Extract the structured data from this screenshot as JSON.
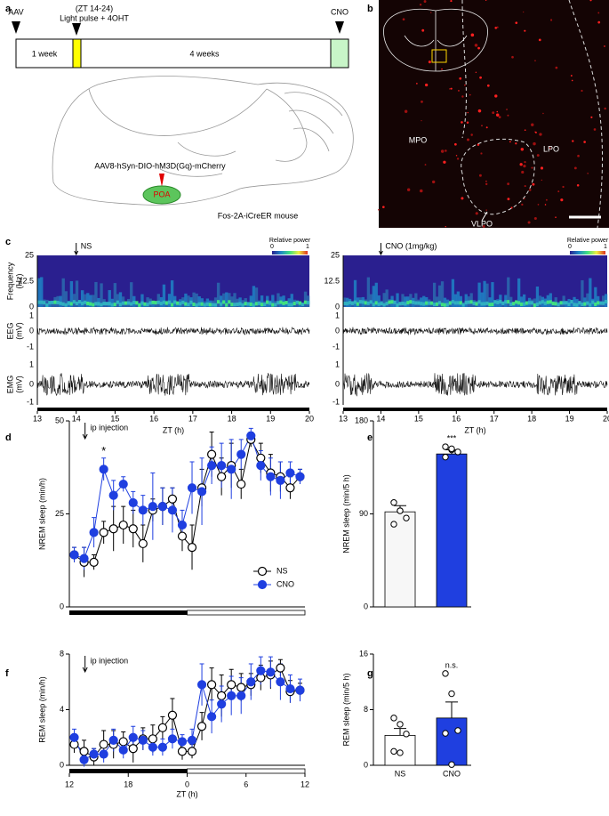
{
  "panels": {
    "a": {
      "label": "a",
      "zt": "(ZT 14-24)",
      "pulse": "Light pulse + 4OHT",
      "aav": "AAV",
      "cno": "CNO",
      "week1": "1 week",
      "week4": "4 weeks",
      "virus": "AAV8-hSyn-DIO-hM3D(Gq)-mCherry",
      "region": "POA",
      "mouse": "Fos-2A-iCreER mouse"
    },
    "b": {
      "label": "b",
      "mpo": "MPO",
      "lpo": "LPO",
      "vlpo": "VLPO"
    },
    "c": {
      "label": "c",
      "left_marker": "NS",
      "right_marker": "CNO (1mg/kg)",
      "power": "Relative power",
      "power_min": 0,
      "power_max": 1,
      "freq_label": [
        "Frequency",
        "(Hz)"
      ],
      "freq_ticks": [
        25,
        12.5,
        0
      ],
      "eeg_label": [
        "EEG",
        "(mV)"
      ],
      "emg_label": [
        "EMG",
        "(mV)"
      ],
      "mv_ticks": [
        1,
        0,
        -1
      ],
      "zt_ticks": [
        13,
        14,
        15,
        16,
        17,
        18,
        19,
        20
      ],
      "zt_label": "ZT (h)"
    }
  },
  "chart_data": [
    {
      "type": "line",
      "panel_label": "d",
      "ylabel": "NREM sleep (min/h)",
      "annotations": [
        "ip injection",
        "*"
      ],
      "x": [
        12.5,
        13.5,
        14.5,
        15.5,
        16.5,
        17.5,
        18.5,
        19.5,
        20.5,
        21.5,
        22.5,
        23.5,
        24.5,
        25.5,
        26.5,
        27.5,
        28.5,
        29.5,
        30.5,
        31.5,
        32.5,
        33.5,
        34.5,
        35.5
      ],
      "xlim": [
        12,
        36
      ],
      "ylim": [
        0,
        50
      ],
      "yticks": [
        0,
        25,
        50
      ],
      "legend": "lower right",
      "series": [
        {
          "name": "NS",
          "color": "#000000",
          "fill": "#ffffff",
          "values": [
            14,
            12,
            12,
            20,
            21,
            22,
            21,
            17,
            26,
            27,
            29,
            19,
            16,
            32,
            41,
            35,
            38,
            33,
            45,
            40,
            36,
            35,
            32,
            35
          ],
          "errors": [
            2,
            4,
            2,
            3,
            6,
            5,
            5,
            5,
            3,
            5,
            3,
            4,
            6,
            5,
            6,
            5,
            6,
            4,
            2,
            4,
            5,
            4,
            3,
            2
          ]
        },
        {
          "name": "CNO",
          "color": "#1f3fe0",
          "fill": "#1f3fe0",
          "values": [
            14,
            13,
            20,
            37,
            30,
            33,
            28,
            26,
            27,
            27,
            26,
            22,
            32,
            31,
            38,
            38,
            37,
            41,
            46,
            38,
            35,
            34,
            36,
            35
          ],
          "errors": [
            2,
            3,
            4,
            3,
            4,
            2,
            3,
            4,
            9,
            5,
            6,
            4,
            7,
            9,
            5,
            6,
            8,
            4,
            2,
            4,
            5,
            5,
            3,
            2
          ]
        }
      ]
    },
    {
      "type": "bar",
      "panel_label": "e",
      "ylabel": "NREM sleep (min/5 h)",
      "annotations": [
        "***"
      ],
      "values": [
        92,
        148
      ],
      "errors": [
        6,
        4
      ],
      "colors": [
        "#f7f7f7",
        "#1f3fe0"
      ],
      "points": [
        [
          101,
          93,
          86,
          80,
          93
        ],
        [
          155,
          152,
          150,
          145,
          153
        ]
      ],
      "ylim": [
        0,
        180
      ],
      "yticks": [
        0,
        90,
        180
      ]
    },
    {
      "type": "line",
      "panel_label": "f",
      "ylabel": "REM sleep (min/h)",
      "xlabel": "ZT (h)",
      "annotations": [
        "ip injection"
      ],
      "x": [
        12.5,
        13.5,
        14.5,
        15.5,
        16.5,
        17.5,
        18.5,
        19.5,
        20.5,
        21.5,
        22.5,
        23.5,
        24.5,
        25.5,
        26.5,
        27.5,
        28.5,
        29.5,
        30.5,
        31.5,
        32.5,
        33.5,
        34.5,
        35.5
      ],
      "xlim": [
        12,
        36
      ],
      "xticks": [
        12,
        18,
        {
          "value": 24,
          "label": "0"
        },
        {
          "value": 30,
          "label": "6"
        },
        {
          "value": 36,
          "label": "12"
        }
      ],
      "ylim": [
        0,
        8
      ],
      "yticks": [
        0,
        4,
        8
      ],
      "series": [
        {
          "name": "NS",
          "color": "#000000",
          "fill": "#ffffff",
          "values": [
            1.5,
            1.0,
            0.6,
            1.5,
            1.5,
            1.7,
            1.2,
            1.9,
            1.9,
            2.7,
            3.6,
            1.0,
            1.0,
            2.8,
            5.8,
            5.0,
            5.8,
            5.6,
            5.8,
            6.3,
            6.5,
            7.0,
            5.3,
            5.4
          ],
          "errors": [
            0.6,
            0.8,
            0.6,
            1,
            1,
            0.7,
            1,
            0.8,
            1,
            0.8,
            1.2,
            0.6,
            0.5,
            1,
            1.2,
            1.5,
            1.1,
            1,
            0.8,
            0.9,
            1,
            0.6,
            0.8,
            0.5
          ]
        },
        {
          "name": "CNO",
          "color": "#1f3fe0",
          "fill": "#1f3fe0",
          "values": [
            2.0,
            0.4,
            0.8,
            0.8,
            1.8,
            1.1,
            2.0,
            1.8,
            1.3,
            1.3,
            1.9,
            1.7,
            1.8,
            5.8,
            3.5,
            4.4,
            5.0,
            5.0,
            6.0,
            6.8,
            6.7,
            6.0,
            5.5,
            5.4
          ],
          "errors": [
            0.6,
            0.5,
            0.4,
            0.6,
            0.8,
            0.6,
            0.8,
            0.7,
            0.6,
            0.6,
            0.7,
            0.5,
            0.8,
            1.5,
            1.2,
            1.3,
            1.4,
            1.3,
            1.3,
            1,
            1.1,
            1.3,
            1,
            0.8
          ]
        }
      ]
    },
    {
      "type": "bar",
      "panel_label": "g",
      "ylabel": "REM sleep (min/5 h)",
      "annotations": [
        "n.s."
      ],
      "categories": [
        "NS",
        "CNO"
      ],
      "values": [
        4.3,
        6.8
      ],
      "errors": [
        1.0,
        2.3
      ],
      "colors": [
        "#ffffff",
        "#1f3fe0"
      ],
      "points": [
        [
          6.8,
          5.9,
          4.5,
          2.0,
          1.8
        ],
        [
          13.2,
          10.3,
          5.0,
          4.6,
          0.1
        ]
      ],
      "ylim": [
        0,
        16
      ],
      "yticks": [
        0,
        8,
        16
      ]
    }
  ]
}
